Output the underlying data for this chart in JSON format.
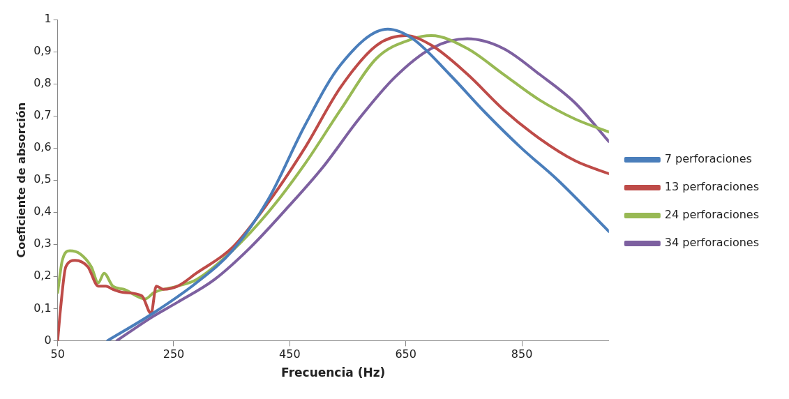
{
  "chart_data": {
    "type": "line",
    "xlabel": "Frecuencia (Hz)",
    "ylabel": "Coeficiente de absorción",
    "xlim": [
      50,
      1000
    ],
    "xticks": [
      50,
      250,
      450,
      650,
      850
    ],
    "ylim": [
      0,
      1
    ],
    "yticks": [
      0,
      {
        "value": 0.1,
        "label": "0,1"
      },
      {
        "value": 0.2,
        "label": "0,2"
      },
      {
        "value": 0.3,
        "label": "0,3"
      },
      {
        "value": 0.4,
        "label": "0,4"
      },
      {
        "value": 0.5,
        "label": "0,5"
      },
      {
        "value": 0.6,
        "label": "0,6"
      },
      {
        "value": 0.7,
        "label": "0,7"
      },
      {
        "value": 0.8,
        "label": "0,8"
      },
      {
        "value": 0.9,
        "label": "0,9"
      },
      1
    ],
    "grid": false,
    "legend": "right",
    "marker": "none",
    "line_style": "solid",
    "series": [
      {
        "name": "7 perforaciones",
        "color": "#4a7ebb",
        "x": [
          136,
          214,
          289,
          351,
          413,
          476,
          538,
          619,
          662,
          725,
          787,
          849,
          912,
          1000
        ],
        "values": [
          0,
          0.085,
          0.18,
          0.28,
          0.44,
          0.67,
          0.86,
          0.97,
          0.94,
          0.83,
          0.71,
          0.6,
          0.5,
          0.34
        ]
      },
      {
        "name": "13 perforaciones",
        "color": "#be4b48",
        "x": [
          50,
          55,
          64,
          80,
          102,
          120,
          133,
          145,
          164,
          195,
          211,
          220,
          232,
          257,
          289,
          351,
          413,
          476,
          538,
          600,
          650,
          694,
          756,
          818,
          880,
          942,
          1000
        ],
        "values": [
          0,
          0.1,
          0.23,
          0.25,
          0.23,
          0.17,
          0.17,
          0.16,
          0.15,
          0.14,
          0.085,
          0.17,
          0.16,
          0.17,
          0.21,
          0.29,
          0.43,
          0.6,
          0.79,
          0.92,
          0.95,
          0.92,
          0.83,
          0.72,
          0.63,
          0.56,
          0.52
        ]
      },
      {
        "name": "24 perforaciones",
        "color": "#98b954",
        "x": [
          50,
          58,
          71,
          89,
          108,
          120,
          130,
          145,
          164,
          201,
          216,
          257,
          289,
          351,
          413,
          476,
          538,
          600,
          662,
          694,
          756,
          818,
          880,
          942,
          1000
        ],
        "values": [
          0.15,
          0.25,
          0.28,
          0.27,
          0.23,
          0.18,
          0.21,
          0.17,
          0.16,
          0.13,
          0.15,
          0.17,
          0.19,
          0.28,
          0.4,
          0.55,
          0.72,
          0.88,
          0.94,
          0.95,
          0.91,
          0.83,
          0.75,
          0.69,
          0.65
        ]
      },
      {
        "name": "34 perforaciones",
        "color": "#7d60a0",
        "x": [
          152,
          214,
          257,
          320,
          382,
          444,
          507,
          569,
          631,
          694,
          756,
          818,
          880,
          942,
          1000
        ],
        "values": [
          0,
          0.075,
          0.12,
          0.19,
          0.29,
          0.41,
          0.54,
          0.69,
          0.82,
          0.91,
          0.94,
          0.91,
          0.83,
          0.74,
          0.62
        ]
      }
    ]
  }
}
